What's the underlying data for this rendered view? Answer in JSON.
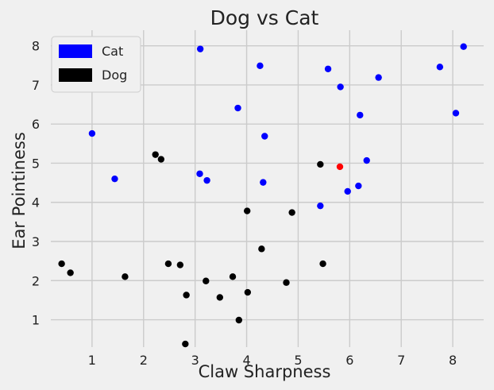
{
  "chart_data": {
    "type": "scatter",
    "title": "Dog vs Cat",
    "xlabel": "Claw Sharpness",
    "ylabel": "Ear Pointiness",
    "xlim": [
      0.2,
      8.6
    ],
    "ylim": [
      0.3,
      8.4
    ],
    "x_ticks": [
      1,
      2,
      3,
      4,
      5,
      6,
      7,
      8
    ],
    "y_ticks": [
      1,
      2,
      3,
      4,
      5,
      6,
      7,
      8
    ],
    "grid": true,
    "legend_position": "top-left",
    "series": [
      {
        "name": "Cat",
        "color": "#0000ff",
        "points": [
          [
            1.0,
            5.76
          ],
          [
            1.44,
            4.6
          ],
          [
            3.1,
            7.92
          ],
          [
            3.09,
            4.73
          ],
          [
            3.23,
            4.56
          ],
          [
            3.83,
            6.41
          ],
          [
            4.26,
            7.49
          ],
          [
            4.35,
            5.69
          ],
          [
            4.32,
            4.51
          ],
          [
            5.43,
            3.91
          ],
          [
            5.58,
            7.41
          ],
          [
            5.82,
            6.95
          ],
          [
            5.96,
            4.28
          ],
          [
            6.17,
            4.42
          ],
          [
            6.2,
            6.23
          ],
          [
            6.33,
            5.07
          ],
          [
            6.56,
            7.19
          ],
          [
            7.75,
            7.46
          ],
          [
            8.06,
            6.28
          ],
          [
            8.21,
            7.98
          ]
        ]
      },
      {
        "name": "Dog",
        "color": "#000000",
        "points": [
          [
            0.41,
            2.43
          ],
          [
            0.58,
            2.2
          ],
          [
            1.64,
            2.1
          ],
          [
            2.23,
            5.22
          ],
          [
            2.34,
            5.1
          ],
          [
            2.48,
            2.43
          ],
          [
            2.71,
            2.4
          ],
          [
            2.81,
            0.38
          ],
          [
            2.83,
            1.63
          ],
          [
            3.21,
            1.99
          ],
          [
            3.48,
            1.57
          ],
          [
            3.73,
            2.1
          ],
          [
            3.85,
            0.99
          ],
          [
            4.01,
            3.78
          ],
          [
            4.02,
            1.7
          ],
          [
            4.29,
            2.81
          ],
          [
            4.77,
            1.95
          ],
          [
            4.88,
            3.74
          ],
          [
            5.43,
            4.97
          ],
          [
            5.48,
            2.43
          ]
        ]
      },
      {
        "color": "#ff0000",
        "points": [
          [
            5.81,
            4.91
          ]
        ]
      }
    ]
  }
}
